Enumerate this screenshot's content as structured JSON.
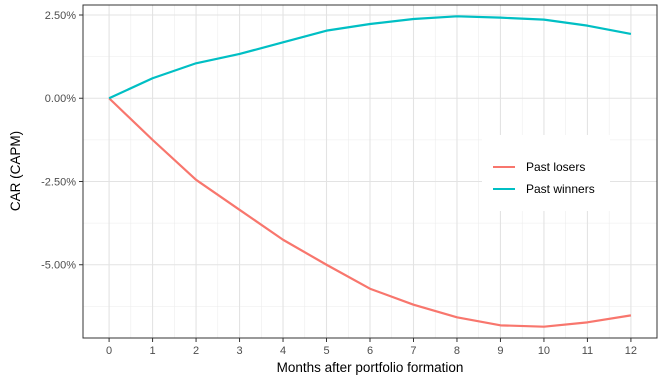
{
  "chart_data": {
    "type": "line",
    "xlabel": "Months after portfolio formation",
    "ylabel": "CAR (CAPM)",
    "x": [
      0,
      1,
      2,
      3,
      4,
      5,
      6,
      7,
      8,
      9,
      10,
      11,
      12
    ],
    "xlim": [
      -0.6,
      12.6
    ],
    "ylim": [
      -7.2,
      2.8
    ],
    "yticks": [
      {
        "value": 2.5,
        "label": "2.50%"
      },
      {
        "value": 0.0,
        "label": "0.00%"
      },
      {
        "value": -2.5,
        "label": "-2.50%"
      },
      {
        "value": -5.0,
        "label": "-5.00%"
      }
    ],
    "xticks": [
      {
        "value": 0,
        "label": "0"
      },
      {
        "value": 1,
        "label": "1"
      },
      {
        "value": 2,
        "label": "2"
      },
      {
        "value": 3,
        "label": "3"
      },
      {
        "value": 4,
        "label": "4"
      },
      {
        "value": 5,
        "label": "5"
      },
      {
        "value": 6,
        "label": "6"
      },
      {
        "value": 7,
        "label": "7"
      },
      {
        "value": 8,
        "label": "8"
      },
      {
        "value": 9,
        "label": "9"
      },
      {
        "value": 10,
        "label": "10"
      },
      {
        "value": 11,
        "label": "11"
      },
      {
        "value": 12,
        "label": "12"
      }
    ],
    "series": [
      {
        "name": "Past losers",
        "color": "#F8766D",
        "values": [
          0.0,
          -1.25,
          -2.45,
          -3.35,
          -4.25,
          -5.0,
          -5.72,
          -6.2,
          -6.58,
          -6.82,
          -6.86,
          -6.73,
          -6.52
        ]
      },
      {
        "name": "Past winners",
        "color": "#00BFC4",
        "values": [
          0.0,
          0.6,
          1.05,
          1.33,
          1.68,
          2.03,
          2.23,
          2.38,
          2.46,
          2.42,
          2.36,
          2.18,
          1.93
        ]
      }
    ],
    "grid": true,
    "legend_position": "right"
  }
}
